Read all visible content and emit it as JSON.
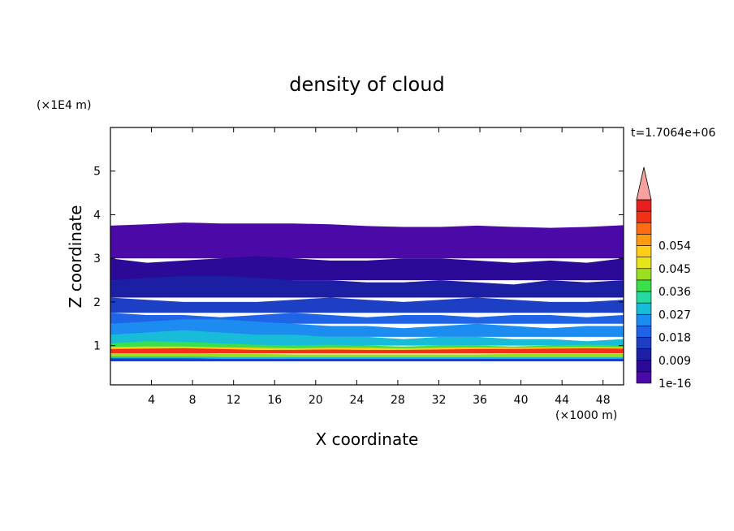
{
  "chart_data": {
    "type": "heatmap",
    "title": "density of cloud",
    "xlabel": "X coordinate",
    "ylabel": "Z coordinate",
    "x_unit": "(×1000 m)",
    "y_unit": "(×1E4 m)",
    "time_label": "t=1.7064e+06",
    "xlim": [
      0,
      50
    ],
    "ylim": [
      0.1,
      6
    ],
    "x_ticks": [
      4,
      8,
      12,
      16,
      20,
      24,
      28,
      32,
      36,
      40,
      44,
      48
    ],
    "y_ticks": [
      1,
      2,
      3,
      4,
      5
    ],
    "colorbar": {
      "labels": [
        "1e-16",
        "0.009",
        "0.018",
        "0.027",
        "0.036",
        "0.045",
        "0.054"
      ],
      "label_levels": [
        0,
        2,
        4,
        6,
        8,
        10,
        12
      ],
      "colors": [
        "#4b0aa8",
        "#2a0a96",
        "#1c1ea3",
        "#1d3fc4",
        "#1f64e6",
        "#1c8cf0",
        "#18bcd8",
        "#25d9a0",
        "#3ae04a",
        "#98e020",
        "#e7e51a",
        "#ffcc16",
        "#ff9a10",
        "#ff6a12",
        "#f23017",
        "#e81f1f",
        "#f7a0a0"
      ]
    },
    "layers": [
      {
        "level": 0,
        "top": [
          3.75,
          3.78,
          3.82,
          3.8,
          3.8,
          3.8,
          3.78,
          3.74,
          3.72,
          3.72,
          3.75,
          3.72,
          3.7,
          3.72,
          3.76
        ],
        "bottom": 3.0
      },
      {
        "level": 1,
        "top": [
          3.0,
          2.9,
          2.95,
          3.0,
          3.05,
          3.0,
          2.95,
          2.95,
          3.0,
          3.0,
          2.95,
          2.9,
          2.95,
          2.9,
          3.0
        ],
        "bottom": 2.5
      },
      {
        "level": 2,
        "top": [
          2.5,
          2.55,
          2.6,
          2.6,
          2.55,
          2.5,
          2.5,
          2.45,
          2.45,
          2.5,
          2.45,
          2.4,
          2.5,
          2.45,
          2.5
        ],
        "bottom": 2.1
      },
      {
        "level": 3,
        "top": [
          2.1,
          2.05,
          2.0,
          2.0,
          2.0,
          2.05,
          2.1,
          2.05,
          2.0,
          2.05,
          2.1,
          2.05,
          2.0,
          2.0,
          2.05
        ],
        "bottom": 1.75
      },
      {
        "level": 4,
        "top": [
          1.75,
          1.7,
          1.7,
          1.65,
          1.7,
          1.75,
          1.7,
          1.65,
          1.7,
          1.7,
          1.65,
          1.7,
          1.7,
          1.65,
          1.7
        ],
        "bottom": 1.5
      },
      {
        "level": 5,
        "top": [
          1.5,
          1.55,
          1.6,
          1.6,
          1.55,
          1.5,
          1.45,
          1.45,
          1.4,
          1.45,
          1.5,
          1.45,
          1.4,
          1.45,
          1.45
        ],
        "bottom": 1.2
      },
      {
        "level": 6,
        "top": [
          1.25,
          1.3,
          1.35,
          1.3,
          1.25,
          1.25,
          1.2,
          1.2,
          1.15,
          1.2,
          1.2,
          1.15,
          1.15,
          1.1,
          1.15
        ],
        "bottom": 1.0
      },
      {
        "level": 8,
        "top": [
          1.05,
          1.1,
          1.08,
          1.05,
          1.02,
          1.0,
          1.02,
          1.0,
          0.98,
          1.0,
          1.0,
          0.98,
          1.0,
          1.02,
          1.0
        ],
        "bottom": 0.92
      },
      {
        "level": 11,
        "top": [
          0.97,
          0.98,
          0.98,
          0.96,
          0.95,
          0.94,
          0.95,
          0.95,
          0.94,
          0.95,
          0.96,
          0.95,
          0.96,
          0.97,
          0.96
        ],
        "bottom": 0.88
      },
      {
        "level": 14,
        "top": [
          0.92,
          0.93,
          0.94,
          0.92,
          0.9,
          0.9,
          0.91,
          0.9,
          0.9,
          0.91,
          0.92,
          0.92,
          0.93,
          0.94,
          0.93
        ],
        "bottom": 0.82
      },
      {
        "level": 9,
        "top": [
          0.82,
          0.82,
          0.82,
          0.81,
          0.81,
          0.8,
          0.8,
          0.8,
          0.8,
          0.8,
          0.8,
          0.81,
          0.81,
          0.81,
          0.81
        ],
        "bottom": 0.74
      },
      {
        "level": 6,
        "top": [
          0.75,
          0.75,
          0.75,
          0.74,
          0.74,
          0.74,
          0.74,
          0.74,
          0.74,
          0.74,
          0.74,
          0.74,
          0.74,
          0.74,
          0.74
        ],
        "bottom": 0.7
      },
      {
        "level": 3,
        "top": [
          0.71,
          0.71,
          0.71,
          0.7,
          0.7,
          0.7,
          0.7,
          0.7,
          0.7,
          0.7,
          0.7,
          0.7,
          0.7,
          0.7,
          0.7
        ],
        "bottom": 0.64
      }
    ]
  }
}
